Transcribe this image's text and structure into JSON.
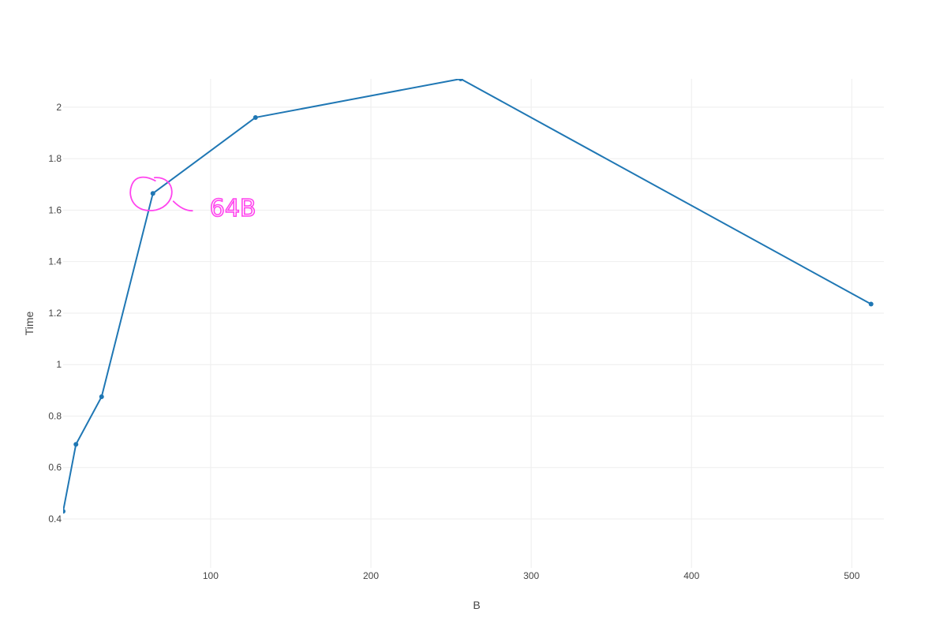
{
  "chart_data": {
    "type": "line",
    "title": "",
    "xlabel": "B",
    "ylabel": "Time",
    "xlim": [
      8,
      520
    ],
    "ylim": [
      0.21,
      2.11
    ],
    "xticks": [
      100,
      200,
      300,
      400,
      500
    ],
    "xtick_labels": [
      "100",
      "200",
      "300",
      "400",
      "500"
    ],
    "yticks": [
      0.4,
      0.6,
      0.8,
      1.0,
      1.2,
      1.4,
      1.6,
      1.8,
      2.0
    ],
    "ytick_labels": [
      "0.4",
      "0.6",
      "0.8",
      "1",
      "1.2",
      "1.4",
      "1.6",
      "1.8",
      "2"
    ],
    "grid": true,
    "series": [
      {
        "x": [
          8,
          16,
          32,
          64,
          128,
          256,
          512
        ],
        "y": [
          0.43,
          0.69,
          0.875,
          1.665,
          1.96,
          2.11,
          1.235
        ],
        "color": "#1f77b4"
      }
    ],
    "annotations": [
      {
        "text": "64B",
        "x": 64,
        "y": 1.665,
        "color": "#ff44ee",
        "style": "handwritten"
      }
    ]
  }
}
